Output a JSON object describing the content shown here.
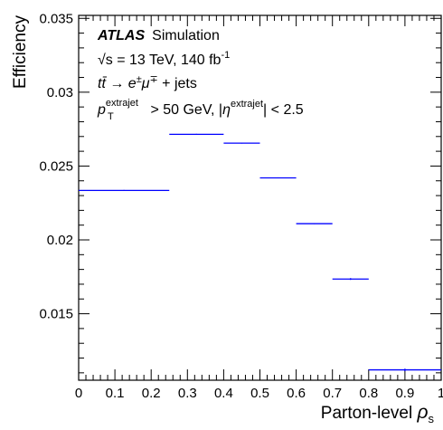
{
  "chart_data": {
    "type": "histogram",
    "xlabel": "Parton-level",
    "xlabel_symbol": "ρ",
    "xlabel_symbol_sub": "s",
    "ylabel": "Efficiency",
    "xlim": [
      0,
      1
    ],
    "ylim": [
      0.0105,
      0.0352
    ],
    "grid": false,
    "x_ticks": [
      {
        "v": 0,
        "label": "0"
      },
      {
        "v": 0.1,
        "label": "0.1"
      },
      {
        "v": 0.2,
        "label": "0.2"
      },
      {
        "v": 0.3,
        "label": "0.3"
      },
      {
        "v": 0.4,
        "label": "0.4"
      },
      {
        "v": 0.5,
        "label": "0.5"
      },
      {
        "v": 0.6,
        "label": "0.6"
      },
      {
        "v": 0.7,
        "label": "0.7"
      },
      {
        "v": 0.8,
        "label": "0.8"
      },
      {
        "v": 0.9,
        "label": "0.9"
      },
      {
        "v": 1.0,
        "label": "1"
      }
    ],
    "y_ticks": [
      {
        "v": 0.015,
        "label": "0.015"
      },
      {
        "v": 0.02,
        "label": "0.02"
      },
      {
        "v": 0.025,
        "label": "0.025"
      },
      {
        "v": 0.03,
        "label": "0.03"
      },
      {
        "v": 0.035,
        "label": "0.035"
      }
    ],
    "series": [
      {
        "color": "#0000ff",
        "bins": [
          {
            "x0": 0.0,
            "x1": 0.25,
            "y": 0.02335,
            "err": 3e-05
          },
          {
            "x0": 0.25,
            "x1": 0.4,
            "y": 0.02715,
            "err": 3e-05
          },
          {
            "x0": 0.4,
            "x1": 0.5,
            "y": 0.02655,
            "err": 3e-05
          },
          {
            "x0": 0.5,
            "x1": 0.6,
            "y": 0.0242,
            "err": 3e-05
          },
          {
            "x0": 0.6,
            "x1": 0.7,
            "y": 0.0211,
            "err": 3e-05
          },
          {
            "x0": 0.7,
            "x1": 0.8,
            "y": 0.01735,
            "err": 6e-05
          },
          {
            "x0": 0.8,
            "x1": 1.0,
            "y": 0.0112,
            "err": 8e-05
          }
        ]
      }
    ],
    "annotations": {
      "atlas": "ATLAS",
      "simulation": "Simulation",
      "energy_sqrt": "√s",
      "energy_rest": " = 13 TeV, 140 fb",
      "energy_exp": "-1",
      "process_t": "t",
      "process_tbar": "t̄",
      "process_arrow": " → ",
      "process_e": "e",
      "process_e_sup": "±",
      "process_mu": "μ",
      "process_mu_sup": "∓",
      "process_rest": " + jets",
      "cut_p": "p",
      "cut_p_sup": "extrajet",
      "cut_p_sub": "T",
      "cut_mid": " > 50 GeV, |",
      "cut_eta": "η",
      "cut_eta_sup": "extrajet",
      "cut_end": "| < 2.5"
    }
  }
}
